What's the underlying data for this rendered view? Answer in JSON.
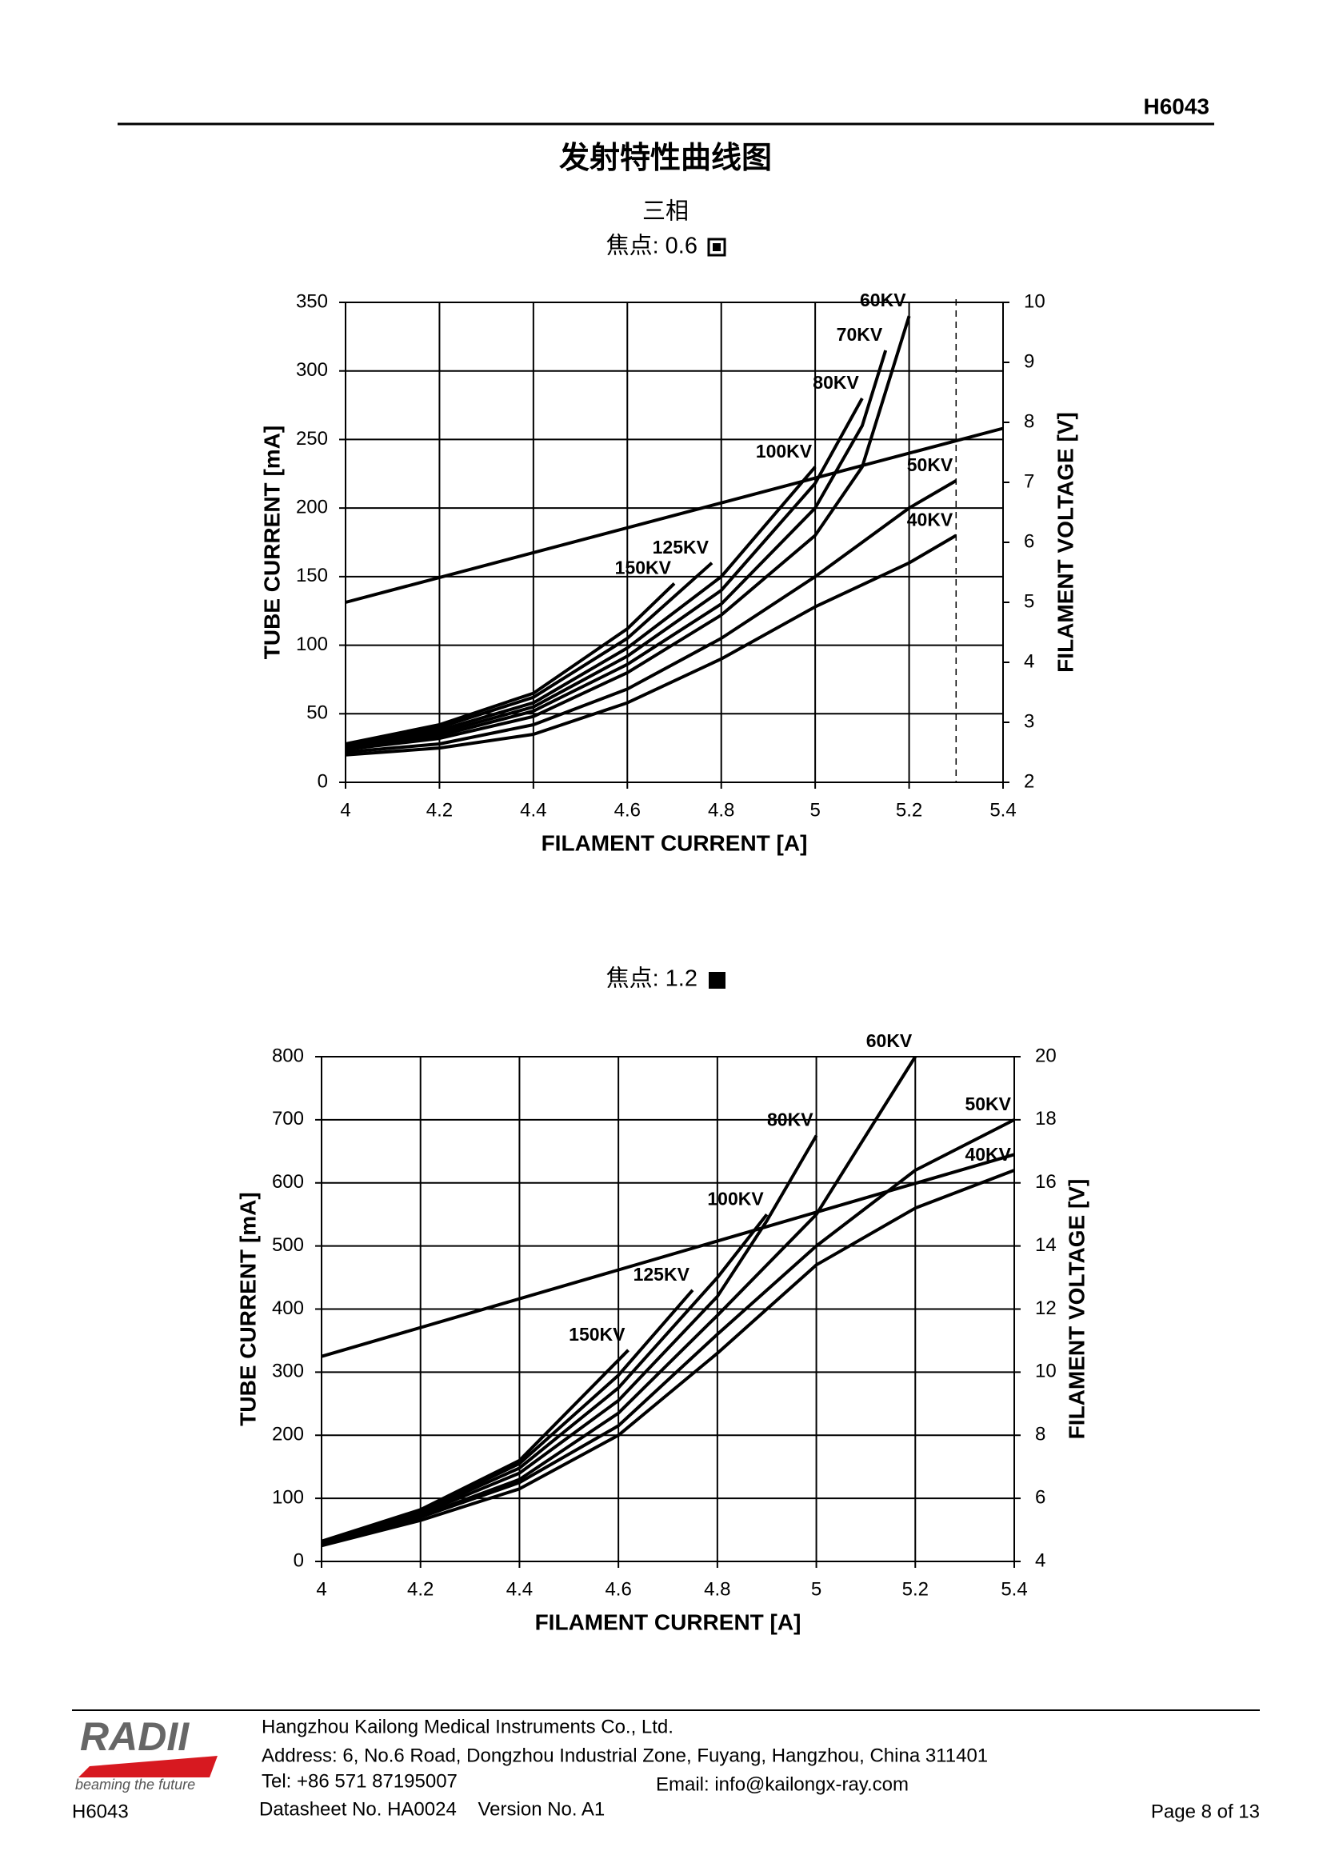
{
  "header": {
    "code": "H6043"
  },
  "title": "发射特性曲线图",
  "subtitle": "三相",
  "chart_data": [
    {
      "type": "line",
      "subtitle": "焦点: 0.6",
      "x_label": "FILAMENT CURRENT [A]",
      "y_label": "TUBE CURRENT [mA]",
      "y2_label": "FILAMENT VOLTAGE [V]",
      "xlim": [
        4,
        5.4
      ],
      "xticks": [
        4,
        4.2,
        4.4,
        4.6,
        4.8,
        5,
        5.2,
        5.4
      ],
      "ylim": [
        0,
        350
      ],
      "yticks": [
        0,
        50,
        100,
        150,
        200,
        250,
        300,
        350
      ],
      "y2lim": [
        2,
        10
      ],
      "y2ticks": [
        2,
        3,
        4,
        5,
        6,
        7,
        8,
        9,
        10
      ],
      "grid": true,
      "vline_x": 5.3,
      "series": [
        {
          "name": "40KV",
          "color": "#000000",
          "x": [
            4,
            4.2,
            4.4,
            4.6,
            4.8,
            5,
            5.2,
            5.3
          ],
          "values": [
            20,
            25,
            35,
            58,
            90,
            128,
            160,
            180
          ]
        },
        {
          "name": "50KV",
          "color": "#000000",
          "x": [
            4,
            4.2,
            4.4,
            4.6,
            4.8,
            5,
            5.1,
            5.2,
            5.3
          ],
          "values": [
            22,
            28,
            42,
            68,
            105,
            150,
            175,
            200,
            220
          ]
        },
        {
          "name": "60KV",
          "color": "#000000",
          "x": [
            4,
            4.2,
            4.4,
            4.6,
            4.8,
            5,
            5.1,
            5.2
          ],
          "values": [
            24,
            32,
            48,
            80,
            122,
            180,
            230,
            340
          ]
        },
        {
          "name": "70KV",
          "color": "#000000",
          "x": [
            4,
            4.2,
            4.4,
            4.6,
            4.8,
            5,
            5.1,
            5.15
          ],
          "values": [
            24,
            34,
            52,
            86,
            130,
            200,
            260,
            315
          ]
        },
        {
          "name": "80KV",
          "color": "#000000",
          "x": [
            4,
            4.2,
            4.4,
            4.6,
            4.8,
            5,
            5.1
          ],
          "values": [
            25,
            36,
            55,
            92,
            140,
            218,
            280
          ]
        },
        {
          "name": "100KV",
          "color": "#000000",
          "x": [
            4,
            4.2,
            4.4,
            4.6,
            4.8,
            5
          ],
          "values": [
            26,
            38,
            58,
            98,
            150,
            230
          ]
        },
        {
          "name": "125KV",
          "color": "#000000",
          "x": [
            4,
            4.2,
            4.4,
            4.6,
            4.78
          ],
          "values": [
            27,
            40,
            62,
            105,
            160
          ]
        },
        {
          "name": "150KV",
          "color": "#000000",
          "x": [
            4,
            4.2,
            4.4,
            4.6,
            4.7
          ],
          "values": [
            28,
            42,
            65,
            112,
            145
          ]
        },
        {
          "axis": "y2",
          "color": "#000000",
          "x": [
            4,
            5.4
          ],
          "values": [
            5.0,
            7.9
          ]
        }
      ]
    },
    {
      "type": "line",
      "subtitle": "焦点: 1.2",
      "x_label": "FILAMENT CURRENT [A]",
      "y_label": "TUBE CURRENT [mA]",
      "y2_label": "FILAMENT VOLTAGE [V]",
      "xlim": [
        4,
        5.4
      ],
      "xticks": [
        4,
        4.2,
        4.4,
        4.6,
        4.8,
        5,
        5.2,
        5.4
      ],
      "ylim": [
        0,
        800
      ],
      "yticks": [
        0,
        100,
        200,
        300,
        400,
        500,
        600,
        700,
        800
      ],
      "y2lim": [
        4,
        20
      ],
      "y2ticks": [
        4,
        6,
        8,
        10,
        12,
        14,
        16,
        18,
        20
      ],
      "grid": true,
      "series": [
        {
          "name": "40KV",
          "color": "#000000",
          "x": [
            4,
            4.2,
            4.4,
            4.6,
            4.8,
            5,
            5.2,
            5.4
          ],
          "values": [
            25,
            65,
            115,
            200,
            330,
            470,
            560,
            620
          ]
        },
        {
          "name": "50KV",
          "color": "#000000",
          "x": [
            4,
            4.2,
            4.4,
            4.6,
            4.8,
            5,
            5.2,
            5.4
          ],
          "values": [
            27,
            70,
            125,
            215,
            360,
            500,
            620,
            700
          ]
        },
        {
          "name": "60KV",
          "color": "#000000",
          "x": [
            4,
            4.2,
            4.4,
            4.6,
            4.8,
            5,
            5.2
          ],
          "values": [
            28,
            72,
            130,
            235,
            390,
            550,
            800
          ]
        },
        {
          "name": "80KV",
          "color": "#000000",
          "x": [
            4,
            4.2,
            4.4,
            4.6,
            4.8,
            4.9,
            5
          ],
          "values": [
            29,
            75,
            140,
            255,
            420,
            540,
            675
          ]
        },
        {
          "name": "100KV",
          "color": "#000000",
          "x": [
            4,
            4.2,
            4.4,
            4.6,
            4.8,
            4.9
          ],
          "values": [
            30,
            78,
            148,
            275,
            450,
            550
          ]
        },
        {
          "name": "125KV",
          "color": "#000000",
          "x": [
            4,
            4.2,
            4.4,
            4.6,
            4.75
          ],
          "values": [
            31,
            80,
            155,
            295,
            430
          ]
        },
        {
          "name": "150KV",
          "color": "#000000",
          "x": [
            4,
            4.2,
            4.4,
            4.62
          ],
          "values": [
            32,
            82,
            160,
            335
          ]
        },
        {
          "axis": "y2",
          "color": "#000000",
          "x": [
            4,
            5.4
          ],
          "values": [
            10.5,
            16.9
          ]
        }
      ]
    }
  ],
  "footer": {
    "logo": "RADII",
    "slogan": "beaming the future",
    "code": "H6043",
    "company": "Hangzhou Kailong Medical Instruments Co., Ltd.",
    "address": "Address: 6, No.6 Road, Dongzhou Industrial Zone, Fuyang, Hangzhou, China 311401",
    "tel": "Tel: +86 571 87195007",
    "email": "Email: info@kailongx-ray.com",
    "datasheet": "Datasheet No. HA0024    Version No. A1",
    "page": "Page 8 of 13"
  }
}
